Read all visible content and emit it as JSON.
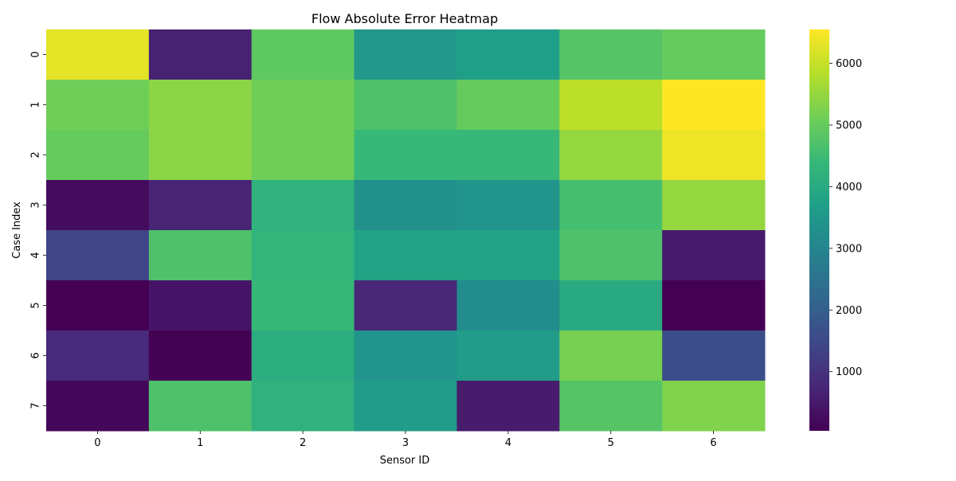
{
  "chart_data": {
    "type": "heatmap",
    "title": "Flow Absolute Error Heatmap",
    "xlabel": "Sensor ID",
    "ylabel": "Case Index",
    "x_categories": [
      "0",
      "1",
      "2",
      "3",
      "4",
      "5",
      "6"
    ],
    "y_categories": [
      "0",
      "1",
      "2",
      "3",
      "4",
      "5",
      "7"
    ],
    "y_categories_all": [
      "0",
      "1",
      "2",
      "3",
      "4",
      "5",
      "6",
      "7"
    ],
    "values": [
      [
        6300,
        650,
        4900,
        3500,
        3700,
        4800,
        5000
      ],
      [
        5100,
        5400,
        5100,
        4700,
        5000,
        5900,
        6550
      ],
      [
        5000,
        5400,
        5100,
        4400,
        4400,
        5500,
        6400
      ],
      [
        250,
        700,
        4200,
        3300,
        3400,
        4600,
        5500
      ],
      [
        1400,
        4700,
        4300,
        3800,
        3800,
        4700,
        500
      ],
      [
        40,
        400,
        4400,
        750,
        3200,
        4000,
        40
      ],
      [
        800,
        60,
        4100,
        3400,
        3600,
        5200,
        1600
      ],
      [
        150,
        4700,
        4200,
        3600,
        550,
        4800,
        5300
      ]
    ],
    "colorbar": {
      "min": 40,
      "max": 6550,
      "ticks": [
        "1000",
        "2000",
        "3000",
        "4000",
        "5000",
        "6000"
      ],
      "tick_values": [
        1000,
        2000,
        3000,
        4000,
        5000,
        6000
      ],
      "colormap": "viridis"
    },
    "legend": "none",
    "grid": false
  }
}
